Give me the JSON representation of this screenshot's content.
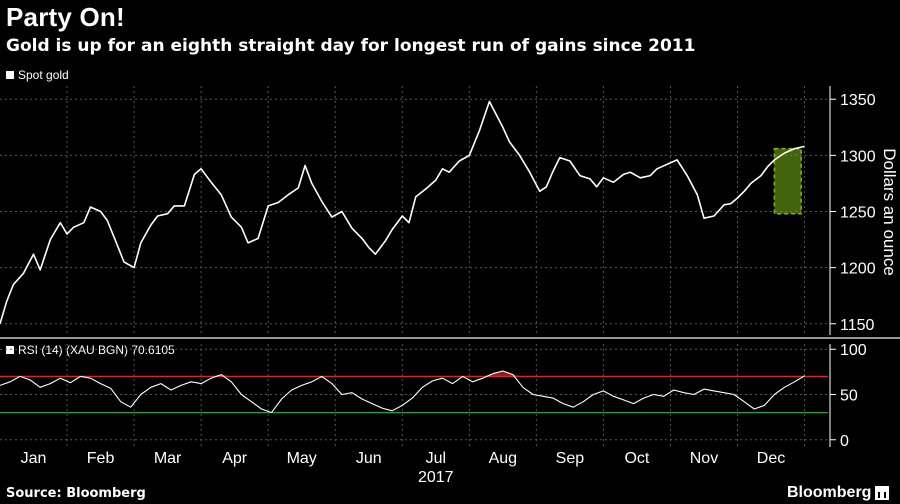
{
  "header": {
    "title": "Party On!",
    "subtitle": "Gold is up for an eighth straight day for longest run of gains since 2011"
  },
  "legend": {
    "series_label": "Spot gold"
  },
  "rsi_legend": {
    "label": "RSI (14) (XAU BGN) 70.6105"
  },
  "axis": {
    "ylabel": "Dollars an ounce",
    "year_label": "2017"
  },
  "footer": {
    "source": "Source: Bloomberg",
    "brand": "Bloomberg"
  },
  "colors": {
    "line": "#ffffff",
    "overbought": "#d62728",
    "oversold": "#2ca02c",
    "highlight": "#7cb518",
    "grid": "#555555"
  },
  "chart_data": [
    {
      "type": "line",
      "title": "Spot gold",
      "ylabel": "Dollars an ounce",
      "ylim": [
        1140,
        1360
      ],
      "yticks": [
        1150,
        1200,
        1250,
        1300,
        1350
      ],
      "xlim": [
        0,
        12.35
      ],
      "categories": [
        "Jan",
        "Feb",
        "Mar",
        "Apr",
        "May",
        "Jun",
        "Jul",
        "Aug",
        "Sep",
        "Oct",
        "Nov",
        "Dec"
      ],
      "category_positions": [
        0.5,
        1.5,
        2.5,
        3.5,
        4.5,
        5.5,
        6.5,
        7.5,
        8.5,
        9.5,
        10.5,
        11.5
      ],
      "x": [
        0.0,
        0.1,
        0.2,
        0.35,
        0.5,
        0.6,
        0.75,
        0.9,
        1.0,
        1.1,
        1.25,
        1.35,
        1.5,
        1.6,
        1.75,
        1.85,
        2.0,
        2.1,
        2.25,
        2.35,
        2.5,
        2.6,
        2.75,
        2.9,
        3.0,
        3.15,
        3.3,
        3.45,
        3.6,
        3.7,
        3.85,
        4.0,
        4.15,
        4.3,
        4.45,
        4.55,
        4.65,
        4.8,
        4.95,
        5.1,
        5.25,
        5.4,
        5.5,
        5.6,
        5.75,
        5.85,
        6.0,
        6.1,
        6.2,
        6.35,
        6.5,
        6.6,
        6.7,
        6.85,
        7.0,
        7.15,
        7.3,
        7.5,
        7.6,
        7.75,
        7.9,
        8.05,
        8.15,
        8.25,
        8.35,
        8.5,
        8.65,
        8.8,
        8.9,
        9.0,
        9.15,
        9.3,
        9.4,
        9.55,
        9.7,
        9.8,
        9.95,
        10.1,
        10.25,
        10.4,
        10.5,
        10.65,
        10.8,
        10.9,
        11.0,
        11.1,
        11.2,
        11.35,
        11.45,
        11.55,
        11.7,
        11.85,
        12.0
      ],
      "values": [
        1150,
        1170,
        1185,
        1195,
        1212,
        1198,
        1225,
        1240,
        1230,
        1236,
        1240,
        1254,
        1250,
        1242,
        1220,
        1205,
        1200,
        1222,
        1238,
        1246,
        1248,
        1255,
        1255,
        1283,
        1288,
        1276,
        1265,
        1245,
        1236,
        1222,
        1226,
        1255,
        1258,
        1265,
        1271,
        1291,
        1275,
        1259,
        1245,
        1250,
        1235,
        1226,
        1218,
        1212,
        1224,
        1234,
        1246,
        1240,
        1263,
        1270,
        1278,
        1288,
        1285,
        1295,
        1300,
        1322,
        1348,
        1325,
        1312,
        1300,
        1285,
        1268,
        1272,
        1286,
        1298,
        1295,
        1282,
        1279,
        1272,
        1280,
        1276,
        1283,
        1285,
        1280,
        1282,
        1288,
        1292,
        1296,
        1282,
        1265,
        1244,
        1246,
        1256,
        1257,
        1262,
        1268,
        1275,
        1282,
        1290,
        1296,
        1302,
        1306,
        1308
      ],
      "annotation": {
        "type": "highlight-box",
        "x_range": [
          11.55,
          11.95
        ],
        "y_range": [
          1248,
          1306
        ]
      }
    },
    {
      "type": "line",
      "title": "RSI (14) (XAU BGN) 70.6105",
      "ylim": [
        -8,
        108
      ],
      "yticks": [
        0,
        50,
        100
      ],
      "reference_lines": [
        70,
        30
      ],
      "x": [
        0.0,
        0.15,
        0.3,
        0.45,
        0.6,
        0.75,
        0.9,
        1.05,
        1.2,
        1.35,
        1.5,
        1.65,
        1.8,
        1.95,
        2.1,
        2.25,
        2.4,
        2.55,
        2.7,
        2.85,
        3.0,
        3.15,
        3.3,
        3.45,
        3.6,
        3.75,
        3.9,
        4.05,
        4.2,
        4.35,
        4.5,
        4.65,
        4.8,
        4.95,
        5.1,
        5.25,
        5.4,
        5.55,
        5.7,
        5.85,
        6.0,
        6.15,
        6.3,
        6.45,
        6.6,
        6.75,
        6.9,
        7.05,
        7.2,
        7.35,
        7.5,
        7.65,
        7.8,
        7.95,
        8.1,
        8.25,
        8.4,
        8.55,
        8.7,
        8.85,
        9.0,
        9.15,
        9.3,
        9.45,
        9.6,
        9.75,
        9.9,
        10.05,
        10.2,
        10.35,
        10.5,
        10.65,
        10.8,
        10.95,
        11.1,
        11.25,
        11.4,
        11.55,
        11.7,
        11.85,
        12.0
      ],
      "values": [
        60,
        64,
        70,
        66,
        58,
        62,
        68,
        63,
        70,
        68,
        62,
        57,
        42,
        36,
        50,
        58,
        62,
        55,
        60,
        64,
        62,
        68,
        72,
        64,
        50,
        42,
        34,
        30,
        45,
        55,
        60,
        64,
        70,
        62,
        50,
        52,
        45,
        40,
        35,
        32,
        38,
        46,
        58,
        65,
        68,
        62,
        70,
        64,
        68,
        73,
        76,
        72,
        58,
        50,
        48,
        46,
        40,
        36,
        42,
        50,
        54,
        48,
        44,
        40,
        46,
        50,
        48,
        55,
        52,
        50,
        56,
        54,
        52,
        50,
        42,
        34,
        38,
        50,
        58,
        64,
        70.6
      ]
    }
  ]
}
